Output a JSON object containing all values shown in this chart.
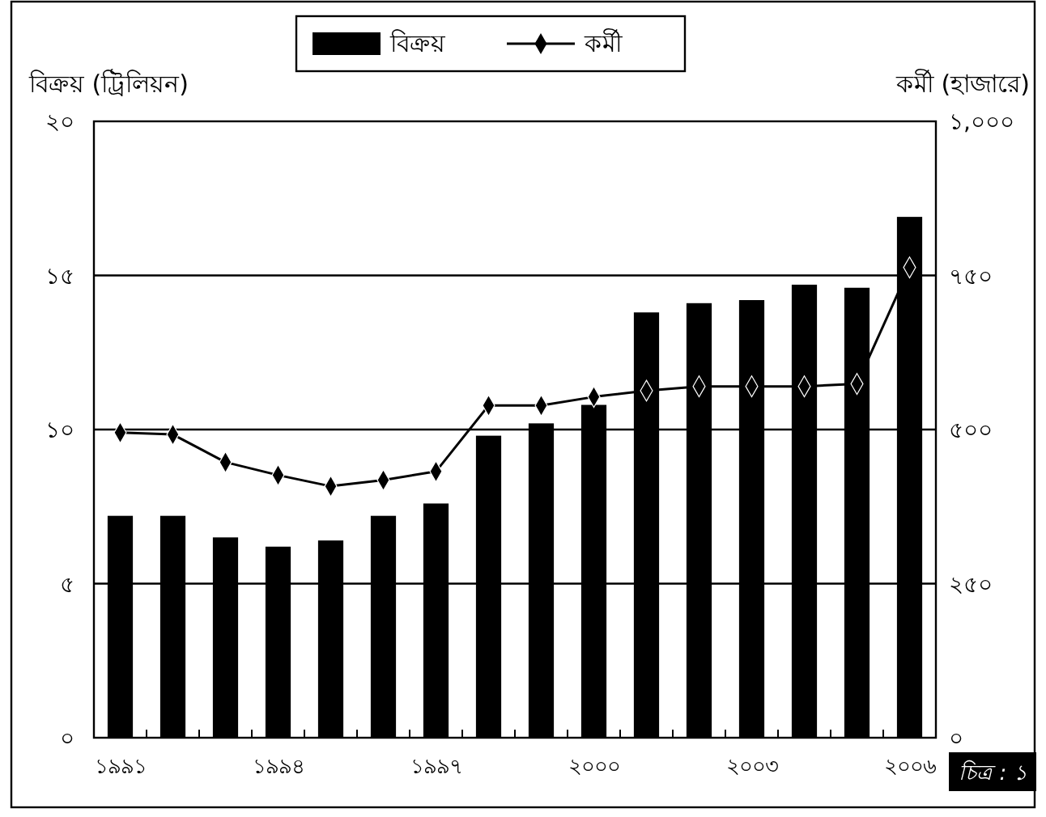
{
  "chart_data": {
    "type": "bar",
    "ylabel": "বিক্রয় (ট্রিলিয়ন)",
    "y2label": "কর্মী (হাজারে)",
    "categories": [
      "১৯৯১",
      null,
      null,
      "১৯৯৪",
      null,
      null,
      "১৯৯৭",
      null,
      null,
      "২০০০",
      null,
      null,
      "২০০৩",
      null,
      null,
      "২০০৬"
    ],
    "series": [
      {
        "name": "বিক্রয়",
        "color": "#000000",
        "values": [
          7.2,
          7.2,
          6.5,
          6.2,
          6.4,
          7.2,
          7.6,
          9.8,
          10.2,
          10.8,
          13.8,
          14.1,
          14.2,
          14.7,
          14.6,
          16.9
        ]
      },
      {
        "name": "কর্মী",
        "type": "line",
        "axis": "y2",
        "color": "#000000",
        "marker": "diamond",
        "values": [
          495,
          492,
          447,
          426,
          408,
          418,
          432,
          539,
          539,
          553,
          563,
          570,
          570,
          570,
          574,
          763
        ]
      }
    ],
    "ylim": [
      0,
      20
    ],
    "yticks": [
      {
        "value": 0,
        "label": "০"
      },
      {
        "value": 5,
        "label": "৫"
      },
      {
        "value": 10,
        "label": "১০"
      },
      {
        "value": 15,
        "label": "১৫"
      },
      {
        "value": 20,
        "label": "২০"
      }
    ],
    "y2lim": [
      0,
      1000
    ],
    "y2ticks": [
      {
        "value": 0,
        "label": "০"
      },
      {
        "value": 250,
        "label": "২৫০"
      },
      {
        "value": 500,
        "label": "৫০০"
      },
      {
        "value": 750,
        "label": "৭৫০"
      },
      {
        "value": 1000,
        "label": "১,০০০"
      }
    ],
    "grid": "y",
    "legend": "top",
    "annotations": [
      "চিত্র : ১"
    ]
  }
}
